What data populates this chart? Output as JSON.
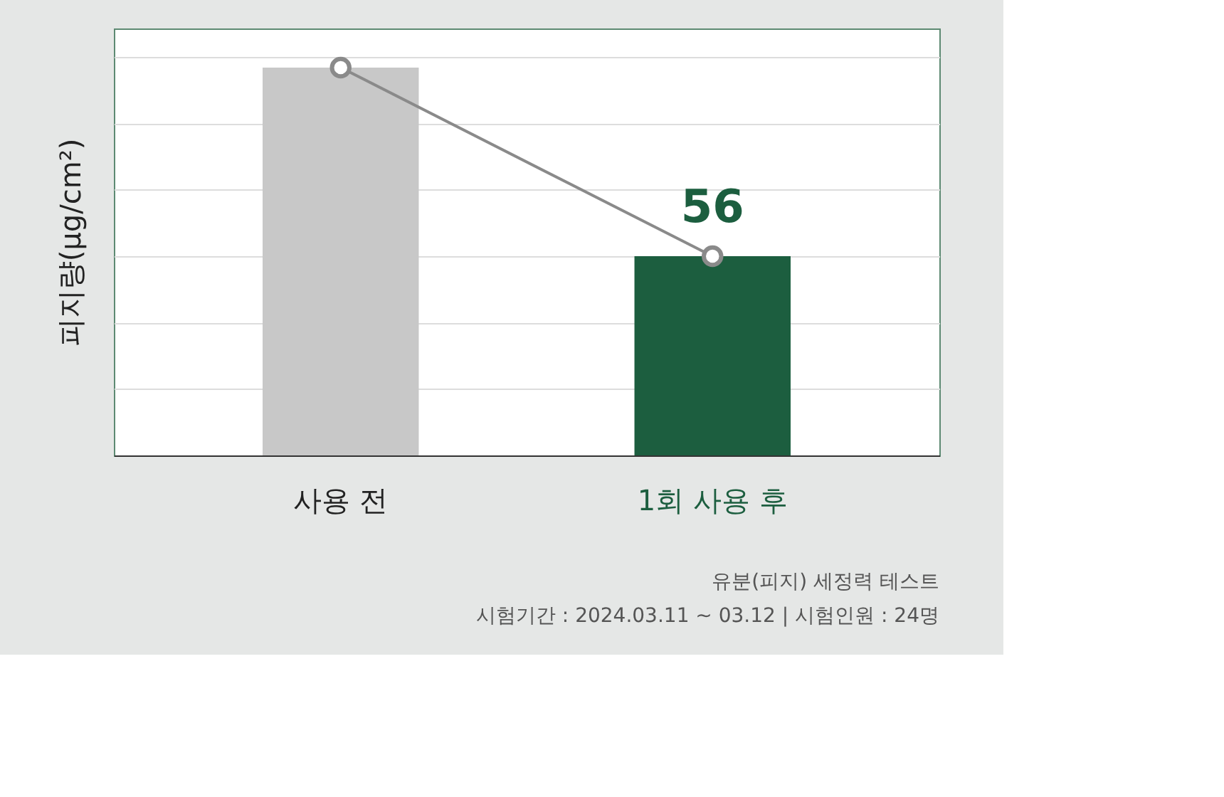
{
  "chart_data": {
    "type": "bar",
    "ylabel": "피지량(μg/cm²)",
    "categories": [
      "사용 전",
      "1회 사용 후"
    ],
    "series": [
      {
        "colors": [
          "#c8c8c8",
          "#1c5e3f"
        ],
        "values": [
          109,
          56
        ],
        "value_labels": [
          null,
          "56"
        ]
      },
      {
        "type": "line",
        "color": "#8a8a8a",
        "values": [
          109,
          56
        ],
        "marker": "circle"
      }
    ],
    "ylim": [
      0,
      120
    ],
    "yticks": [
      {
        "value": 18.67,
        "label": null
      },
      {
        "value": 37.33,
        "label": null
      },
      {
        "value": 56,
        "label": null
      },
      {
        "value": 74.67,
        "label": null
      },
      {
        "value": 93.33,
        "label": null
      },
      {
        "value": 112,
        "label": null
      }
    ],
    "grid": "y",
    "tick_labels": "x",
    "annotations": [
      "유분(피지) 세정력 테스트",
      "시험기간 : 2024.03.11 ~ 03.12 | 시험인원 : 24명"
    ]
  }
}
